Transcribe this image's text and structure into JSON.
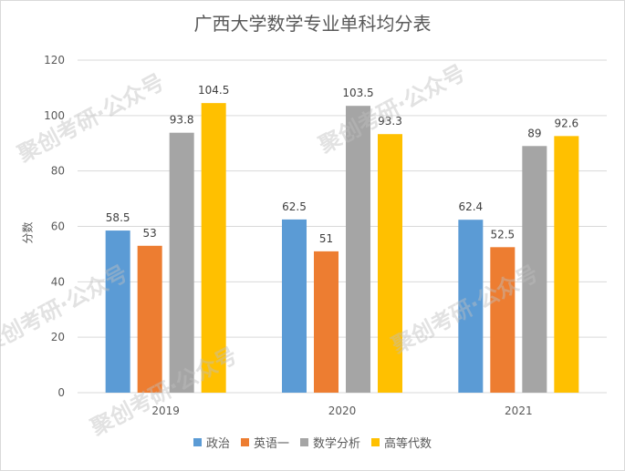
{
  "chart_data": {
    "type": "bar",
    "title": "广西大学数学专业单科均分表",
    "ylabel": "分数",
    "xlabel": "",
    "categories": [
      "2019",
      "2020",
      "2021"
    ],
    "ylim": [
      0,
      120
    ],
    "yticks": [
      "0",
      "20",
      "40",
      "60",
      "80",
      "100",
      "120"
    ],
    "grid": true,
    "legend_position": "bottom",
    "series": [
      {
        "name": "政治",
        "color": "#5b9bd5",
        "values": [
          58.5,
          62.5,
          62.4
        ],
        "labels": [
          "58.5",
          "62.5",
          "62.4"
        ]
      },
      {
        "name": "英语一",
        "color": "#ed7d31",
        "values": [
          53,
          51,
          52.5
        ],
        "labels": [
          "53",
          "51",
          "52.5"
        ]
      },
      {
        "name": "数学分析",
        "color": "#a5a5a5",
        "values": [
          93.8,
          103.5,
          89
        ],
        "labels": [
          "93.8",
          "103.5",
          "89"
        ]
      },
      {
        "name": "高等代数",
        "color": "#ffc000",
        "values": [
          104.5,
          93.3,
          92.6
        ],
        "labels": [
          "104.5",
          "93.3",
          "92.6"
        ]
      }
    ]
  },
  "watermark": "聚创考研·公众号"
}
